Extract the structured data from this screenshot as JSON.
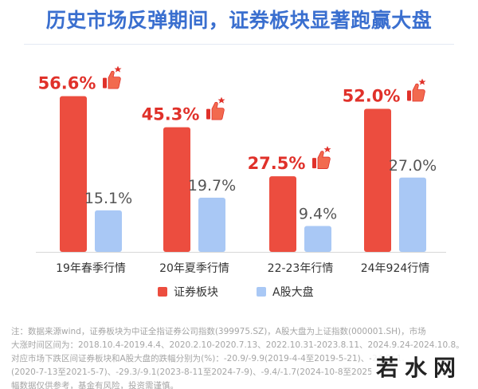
{
  "title": "历史市场反弹期间，证券板块显著跑赢大盘",
  "colors": {
    "securities": "#ec4d3f",
    "market": "#a9c8f5",
    "title": "#3a6fcf",
    "accent_label": "#e0312a"
  },
  "icons": {
    "highlight": "thumbs-up-icon"
  },
  "chart_data": {
    "type": "bar",
    "categories": [
      "19年春季行情",
      "20年夏季行情",
      "22-23年行情",
      "24年924行情"
    ],
    "series": [
      {
        "name": "证券板块",
        "values": [
          56.6,
          45.3,
          27.5,
          52.0
        ],
        "labels": [
          "56.6%",
          "45.3%",
          "27.5%",
          "52.0%"
        ]
      },
      {
        "name": "A股大盘",
        "values": [
          15.1,
          19.7,
          9.4,
          27.0
        ],
        "labels": [
          "15.1%",
          "19.7%",
          "9.4%",
          "27.0%"
        ]
      }
    ],
    "legend": [
      "证券板块",
      "A股大盘"
    ],
    "legend_position": "bottom",
    "ylim": [
      0,
      62
    ],
    "grid": false,
    "xlabel": "",
    "ylabel": ""
  },
  "note": {
    "lines": [
      "注：数据来源wind，证券板块为中证全指证券公司指数(399975.SZ)，A股大盘为上证指数(000001.SH)，市场",
      "大涨时间区间为：2018.10.4-2019.4.4、2020.2.10-2020.7.13、2022.10.31-2023.8.11、2024.9.24-2024.10.8。",
      "对应市场下跌区间证券板块和A股大盘的跌幅分别为(%)：-20.9/-9.9(2019-4-4至2019-5-21)、-24.0/-1.",
      "(2020-7-13至2021-5-7)、-29.3/-9.1(2023-8-11至2024-7-9)、-9.4/-1.7(2024-10-8至2025",
      "幅数据仅供参考，基金有风险，投资需谨慎。"
    ]
  },
  "watermark": "若水网"
}
